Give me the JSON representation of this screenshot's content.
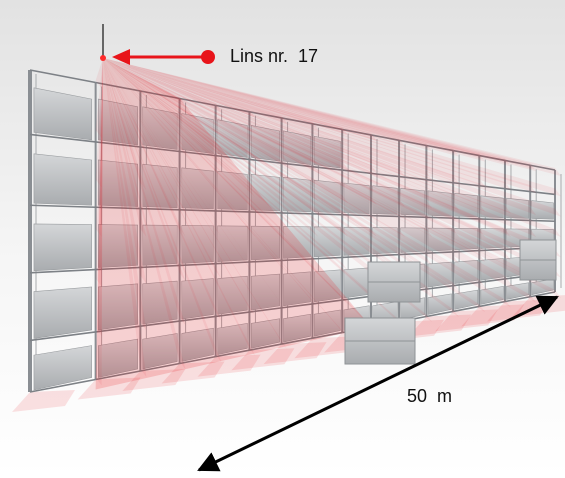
{
  "annotations": {
    "lens_label": "Lins nr.  17",
    "distance_label": "50  m"
  },
  "colors": {
    "beam_red": "#e8141a",
    "arrow_red": "#e8141a",
    "rack_gray": "#8a8e93",
    "crate_gray": "#c9cbcd",
    "background_top": "#e6e6e6"
  },
  "icons": [
    "sensor-mast-icon",
    "red-arrow-icon",
    "double-headed-arrow-icon"
  ]
}
